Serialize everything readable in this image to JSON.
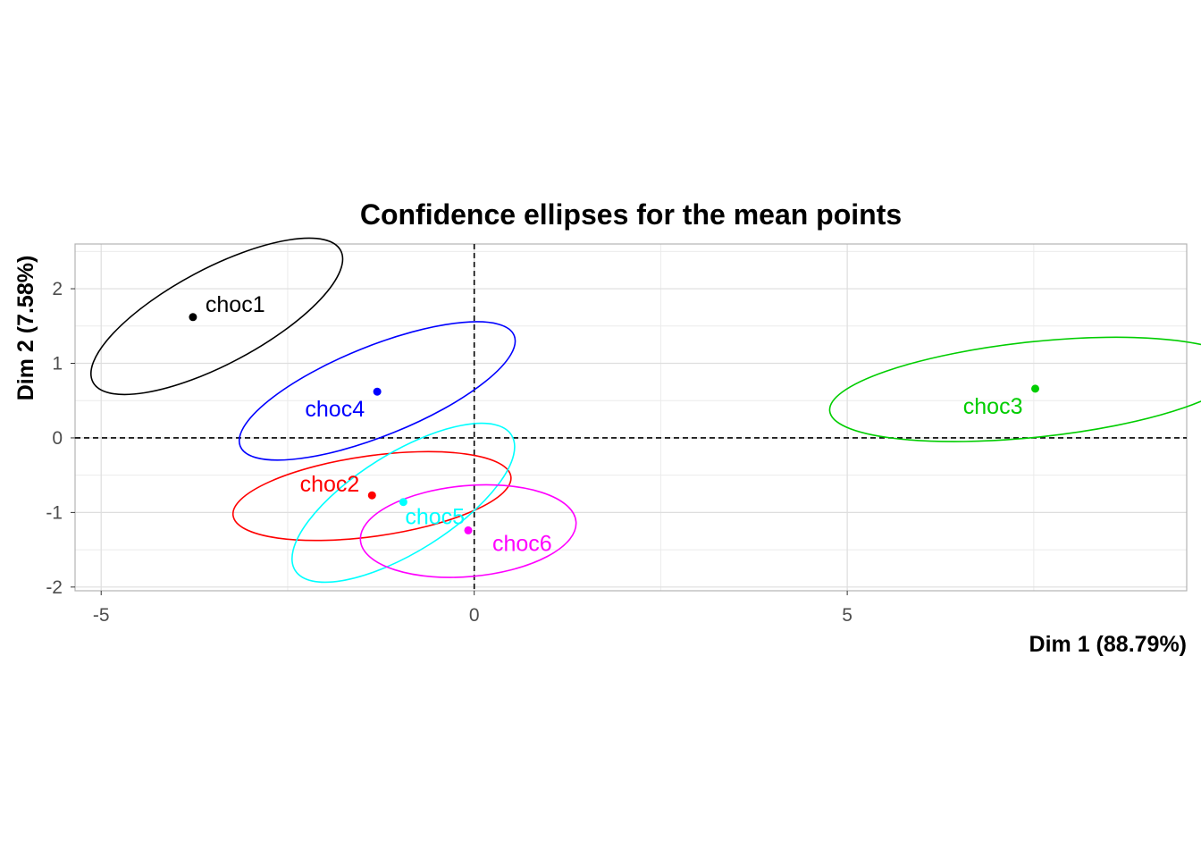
{
  "chart_data": {
    "type": "scatter",
    "title": "Confidence ellipses for the mean points",
    "xlabel": "Dim 1 (88.79%)",
    "ylabel": "Dim 2 (7.58%)",
    "xlim": [
      -5.35,
      9.55
    ],
    "ylim": [
      -2.05,
      2.6
    ],
    "x_ticks": [
      -5,
      0,
      5
    ],
    "x_tick_labels": [
      "-5",
      "0",
      "5"
    ],
    "y_ticks": [
      -2,
      -1,
      0,
      1,
      2
    ],
    "y_tick_labels": [
      "-2",
      "-1",
      "0",
      "1",
      "2"
    ],
    "x_minor_ticks": [
      -2.5,
      2.5,
      7.5
    ],
    "y_minor_ticks": [
      -1.5,
      -0.5,
      0.5,
      1.5,
      2.5
    ],
    "grid": true,
    "reference_lines": {
      "x": 0,
      "y": 0,
      "style": "dashed"
    },
    "points": [
      {
        "label": "choc1",
        "x": -3.77,
        "y": 1.62,
        "color": "#000000",
        "ellipse": {
          "cx": -3.45,
          "cy": 1.63,
          "rx": 1.88,
          "ry": 0.64,
          "angle_deg": 28
        }
      },
      {
        "label": "choc2",
        "x": -1.37,
        "y": -0.77,
        "color": "#ff0000",
        "ellipse": {
          "cx": -1.37,
          "cy": -0.78,
          "rx": 1.88,
          "ry": 0.54,
          "angle_deg": 8
        }
      },
      {
        "label": "choc3",
        "x": 7.52,
        "y": 0.66,
        "color": "#00cd00",
        "ellipse": {
          "cx": 7.52,
          "cy": 0.65,
          "rx": 2.77,
          "ry": 0.64,
          "angle_deg": 6
        }
      },
      {
        "label": "choc4",
        "x": -1.3,
        "y": 0.62,
        "color": "#0000ff",
        "ellipse": {
          "cx": -1.3,
          "cy": 0.63,
          "rx": 1.98,
          "ry": 0.6,
          "angle_deg": 22
        }
      },
      {
        "label": "choc5",
        "x": -0.95,
        "y": -0.86,
        "color": "#00ffff",
        "ellipse": {
          "cx": -0.95,
          "cy": -0.87,
          "rx": 1.71,
          "ry": 0.66,
          "angle_deg": 32
        }
      },
      {
        "label": "choc6",
        "x": -0.08,
        "y": -1.24,
        "color": "#ff00ff",
        "ellipse": {
          "cx": -0.08,
          "cy": -1.25,
          "rx": 1.45,
          "ry": 0.61,
          "angle_deg": 5
        }
      }
    ]
  }
}
